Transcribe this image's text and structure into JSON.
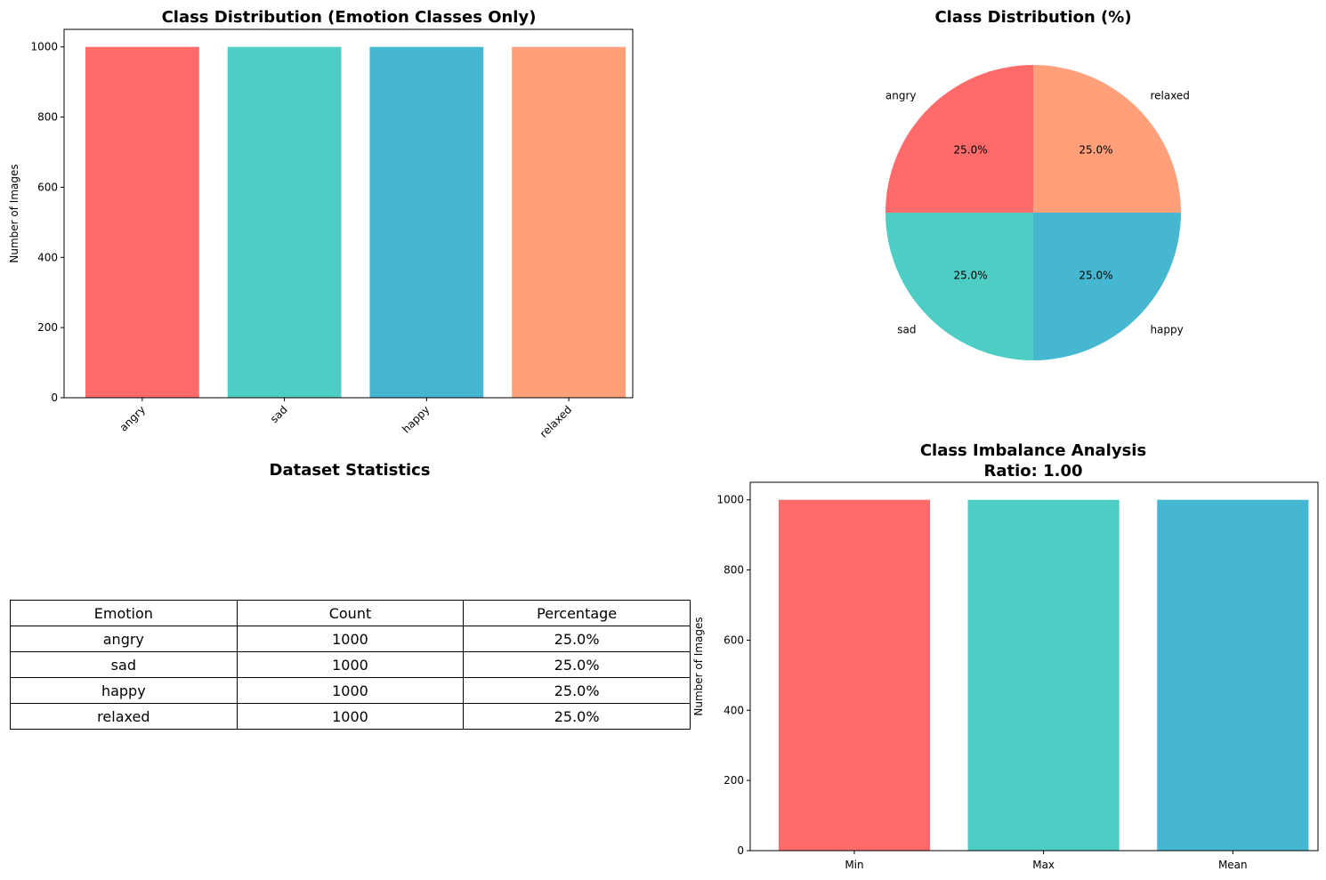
{
  "colors": [
    "#FF6B6B",
    "#4ECDC4",
    "#45B7D1",
    "#FFA07A"
  ],
  "chart_data": [
    {
      "type": "bar",
      "title": "Class Distribution (Emotion Classes Only)",
      "xlabel": "",
      "ylabel": "Number of Images",
      "categories": [
        "angry",
        "sad",
        "happy",
        "relaxed"
      ],
      "values": [
        1000,
        1000,
        1000,
        1000
      ],
      "ylim": [
        0,
        1050
      ],
      "yticks": [
        0,
        200,
        400,
        600,
        800,
        1000
      ],
      "grid": false
    },
    {
      "type": "pie",
      "title": "Class Distribution (%)",
      "labels": [
        "angry",
        "sad",
        "happy",
        "relaxed"
      ],
      "values": [
        25.0,
        25.0,
        25.0,
        25.0
      ],
      "pct_labels": [
        "25.0%",
        "25.0%",
        "25.0%",
        "25.0%"
      ]
    },
    {
      "type": "table",
      "title": "Dataset Statistics",
      "columns": [
        "Emotion",
        "Count",
        "Percentage"
      ],
      "rows": [
        [
          "angry",
          "1000",
          "25.0%"
        ],
        [
          "sad",
          "1000",
          "25.0%"
        ],
        [
          "happy",
          "1000",
          "25.0%"
        ],
        [
          "relaxed",
          "1000",
          "25.0%"
        ]
      ]
    },
    {
      "type": "bar",
      "title": "Class Imbalance Analysis",
      "subtitle": "Ratio: 1.00",
      "xlabel": "",
      "ylabel": "Number of Images",
      "categories": [
        "Min",
        "Max",
        "Mean"
      ],
      "values": [
        1000,
        1000,
        1000
      ],
      "ylim": [
        0,
        1050
      ],
      "yticks": [
        0,
        200,
        400,
        600,
        800,
        1000
      ],
      "grid": false
    }
  ]
}
